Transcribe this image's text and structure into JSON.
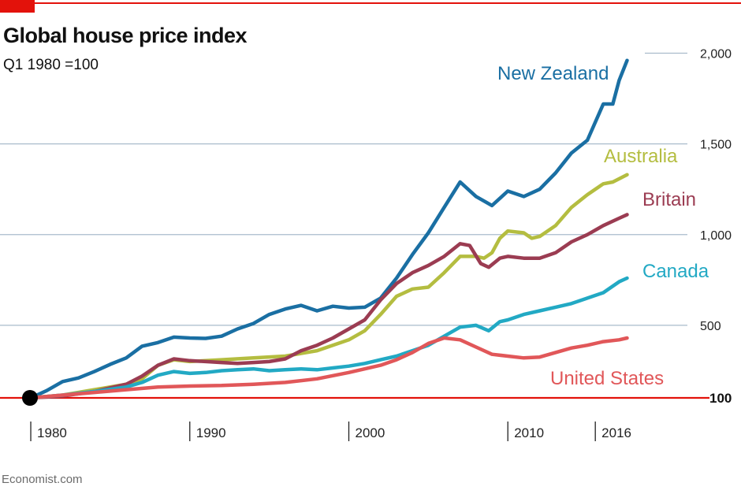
{
  "header": {
    "title": "Global house price index",
    "subtitle": "Q1 1980 =100"
  },
  "footer": {
    "source": "Economist.com"
  },
  "colors": {
    "accent": "#e3120b",
    "new_zealand": "#1a6fa3",
    "australia": "#b4bd40",
    "britain": "#9b3c52",
    "canada": "#22a9c4",
    "united_states": "#e15759",
    "grid": "#a9bccb"
  },
  "chart_data": {
    "type": "line",
    "title": "Global house price index",
    "subtitle": "Q1 1980 =100",
    "xlabel": "",
    "ylabel": "",
    "xlim": [
      1979.8,
      2020.2
    ],
    "ylim": [
      100,
      2050
    ],
    "x_ticks": [
      {
        "value": 1980,
        "label": "1980"
      },
      {
        "value": 1990,
        "label": "1990"
      },
      {
        "value": 2000,
        "label": "2000"
      },
      {
        "value": 2010,
        "label": "2010"
      },
      {
        "value": 2015.5,
        "label": "2016"
      }
    ],
    "y_ticks": [
      {
        "value": 500,
        "label": "500"
      },
      {
        "value": 1000,
        "label": "1,000"
      },
      {
        "value": 1500,
        "label": "1,500"
      },
      {
        "value": 2000,
        "label": "2,000"
      }
    ],
    "baseline": {
      "value": 100,
      "label": "100"
    },
    "grid": true,
    "legend": "direct labels",
    "series": [
      {
        "name": "New Zealand",
        "color": "#1a6fa3",
        "points": [
          [
            1980,
            100
          ],
          [
            1981,
            140
          ],
          [
            1982,
            190
          ],
          [
            1983,
            210
          ],
          [
            1984,
            245
          ],
          [
            1985,
            285
          ],
          [
            1986,
            320
          ],
          [
            1987,
            385
          ],
          [
            1988,
            405
          ],
          [
            1989,
            435
          ],
          [
            1990,
            430
          ],
          [
            1991,
            428
          ],
          [
            1992,
            440
          ],
          [
            1993,
            480
          ],
          [
            1994,
            510
          ],
          [
            1995,
            560
          ],
          [
            1996,
            590
          ],
          [
            1997,
            610
          ],
          [
            1998,
            580
          ],
          [
            1999,
            605
          ],
          [
            2000,
            595
          ],
          [
            2001,
            600
          ],
          [
            2002,
            650
          ],
          [
            2003,
            760
          ],
          [
            2004,
            890
          ],
          [
            2005,
            1010
          ],
          [
            2006,
            1150
          ],
          [
            2007,
            1290
          ],
          [
            2008,
            1210
          ],
          [
            2009,
            1160
          ],
          [
            2010,
            1240
          ],
          [
            2011,
            1210
          ],
          [
            2012,
            1250
          ],
          [
            2013,
            1340
          ],
          [
            2014,
            1450
          ],
          [
            2015,
            1520
          ],
          [
            2016,
            1720
          ],
          [
            2016.6,
            1720
          ],
          [
            2017,
            1850
          ],
          [
            2017.5,
            1960
          ]
        ]
      },
      {
        "name": "Australia",
        "color": "#b4bd40",
        "points": [
          [
            1980,
            100
          ],
          [
            1982,
            115
          ],
          [
            1984,
            145
          ],
          [
            1986,
            175
          ],
          [
            1987,
            205
          ],
          [
            1988,
            280
          ],
          [
            1989,
            310
          ],
          [
            1990,
            300
          ],
          [
            1992,
            310
          ],
          [
            1994,
            320
          ],
          [
            1996,
            330
          ],
          [
            1998,
            360
          ],
          [
            2000,
            420
          ],
          [
            2001,
            470
          ],
          [
            2002,
            560
          ],
          [
            2003,
            660
          ],
          [
            2004,
            700
          ],
          [
            2005,
            710
          ],
          [
            2006,
            790
          ],
          [
            2007,
            880
          ],
          [
            2008,
            880
          ],
          [
            2008.5,
            870
          ],
          [
            2009,
            900
          ],
          [
            2009.5,
            980
          ],
          [
            2010,
            1020
          ],
          [
            2011,
            1010
          ],
          [
            2011.5,
            980
          ],
          [
            2012,
            990
          ],
          [
            2013,
            1050
          ],
          [
            2014,
            1150
          ],
          [
            2015,
            1220
          ],
          [
            2016,
            1280
          ],
          [
            2016.6,
            1290
          ],
          [
            2017.5,
            1330
          ]
        ]
      },
      {
        "name": "Britain",
        "color": "#9b3c52",
        "points": [
          [
            1980,
            100
          ],
          [
            1982,
            110
          ],
          [
            1984,
            135
          ],
          [
            1986,
            175
          ],
          [
            1987,
            220
          ],
          [
            1988,
            280
          ],
          [
            1989,
            315
          ],
          [
            1990,
            305
          ],
          [
            1991,
            300
          ],
          [
            1992,
            295
          ],
          [
            1993,
            290
          ],
          [
            1994,
            295
          ],
          [
            1995,
            300
          ],
          [
            1996,
            315
          ],
          [
            1997,
            360
          ],
          [
            1998,
            390
          ],
          [
            1999,
            430
          ],
          [
            2000,
            480
          ],
          [
            2001,
            530
          ],
          [
            2002,
            640
          ],
          [
            2003,
            730
          ],
          [
            2004,
            790
          ],
          [
            2005,
            830
          ],
          [
            2006,
            880
          ],
          [
            2007,
            950
          ],
          [
            2007.6,
            940
          ],
          [
            2008.3,
            840
          ],
          [
            2008.8,
            820
          ],
          [
            2009.5,
            870
          ],
          [
            2010,
            880
          ],
          [
            2011,
            870
          ],
          [
            2012,
            870
          ],
          [
            2013,
            900
          ],
          [
            2014,
            960
          ],
          [
            2015,
            1000
          ],
          [
            2016,
            1050
          ],
          [
            2017,
            1090
          ],
          [
            2017.5,
            1110
          ]
        ]
      },
      {
        "name": "Canada",
        "color": "#22a9c4",
        "points": [
          [
            1980,
            100
          ],
          [
            1982,
            115
          ],
          [
            1984,
            135
          ],
          [
            1986,
            160
          ],
          [
            1987,
            185
          ],
          [
            1988,
            225
          ],
          [
            1989,
            245
          ],
          [
            1990,
            235
          ],
          [
            1991,
            240
          ],
          [
            1992,
            250
          ],
          [
            1993,
            255
          ],
          [
            1994,
            260
          ],
          [
            1995,
            250
          ],
          [
            1996,
            255
          ],
          [
            1997,
            260
          ],
          [
            1998,
            255
          ],
          [
            1999,
            265
          ],
          [
            2000,
            275
          ],
          [
            2001,
            290
          ],
          [
            2002,
            310
          ],
          [
            2003,
            330
          ],
          [
            2004,
            360
          ],
          [
            2005,
            390
          ],
          [
            2006,
            440
          ],
          [
            2007,
            490
          ],
          [
            2008,
            500
          ],
          [
            2008.8,
            470
          ],
          [
            2009.5,
            520
          ],
          [
            2010,
            530
          ],
          [
            2011,
            560
          ],
          [
            2012,
            580
          ],
          [
            2013,
            600
          ],
          [
            2014,
            620
          ],
          [
            2015,
            650
          ],
          [
            2016,
            680
          ],
          [
            2017,
            740
          ],
          [
            2017.5,
            760
          ]
        ]
      },
      {
        "name": "United States",
        "color": "#e15759",
        "points": [
          [
            1980,
            100
          ],
          [
            1982,
            115
          ],
          [
            1984,
            130
          ],
          [
            1986,
            145
          ],
          [
            1988,
            160
          ],
          [
            1990,
            165
          ],
          [
            1992,
            168
          ],
          [
            1994,
            175
          ],
          [
            1996,
            185
          ],
          [
            1998,
            205
          ],
          [
            2000,
            240
          ],
          [
            2002,
            280
          ],
          [
            2003,
            310
          ],
          [
            2004,
            350
          ],
          [
            2005,
            400
          ],
          [
            2006,
            430
          ],
          [
            2007,
            420
          ],
          [
            2008,
            380
          ],
          [
            2009,
            340
          ],
          [
            2010,
            330
          ],
          [
            2011,
            320
          ],
          [
            2012,
            325
          ],
          [
            2013,
            350
          ],
          [
            2014,
            375
          ],
          [
            2015,
            390
          ],
          [
            2016,
            410
          ],
          [
            2017,
            420
          ],
          [
            2017.5,
            430
          ]
        ]
      }
    ]
  }
}
